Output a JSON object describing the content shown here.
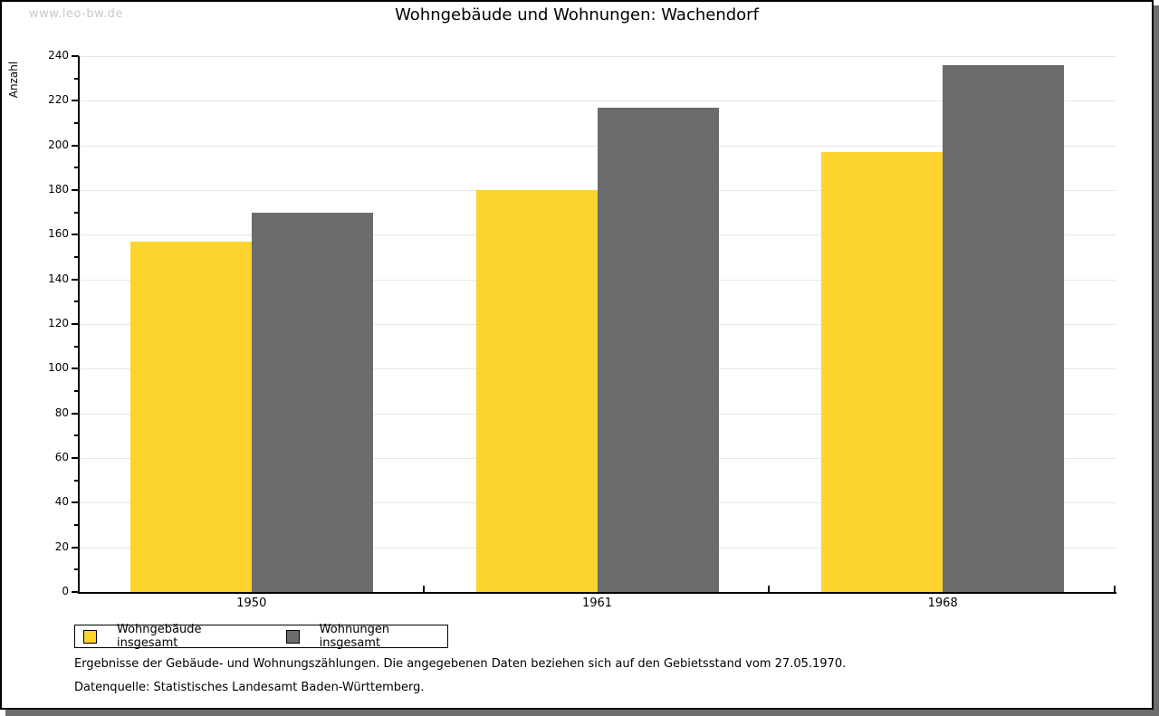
{
  "watermark": "www.leo-bw.de",
  "title": "Wohngebäude und Wohnungen: Wachendorf",
  "chart_data": {
    "type": "bar",
    "title": "Wohngebäude und Wohnungen: Wachendorf",
    "categories": [
      "1950",
      "1961",
      "1968"
    ],
    "series": [
      {
        "name": "Wohngebäude insgesamt",
        "color": "#FCD42D",
        "values": [
          157,
          180,
          197
        ]
      },
      {
        "name": "Wohnungen insgesamt",
        "color": "#6B6B6B",
        "values": [
          170,
          217,
          236
        ]
      }
    ],
    "xlabel": "",
    "ylabel": "Anzahl",
    "ylim": [
      0,
      240
    ],
    "ytick_step": 20,
    "yminor_step": 10,
    "grid": true,
    "legend_position": "bottom-left"
  },
  "footnotes": [
    "Ergebnisse der Gebäude- und Wohnungszählungen. Die angegebenen Daten beziehen sich auf den Gebietsstand vom 27.05.1970.",
    "Datenquelle: Statistisches Landesamt Baden-Württemberg."
  ],
  "colors": {
    "bar_yellow": "#FCD42D",
    "bar_gray": "#6B6B6B",
    "gridline": "#E6E6E6",
    "axis": "#000000",
    "watermark_text": "#C9C9C9",
    "shadow": "#6E6E6E"
  }
}
